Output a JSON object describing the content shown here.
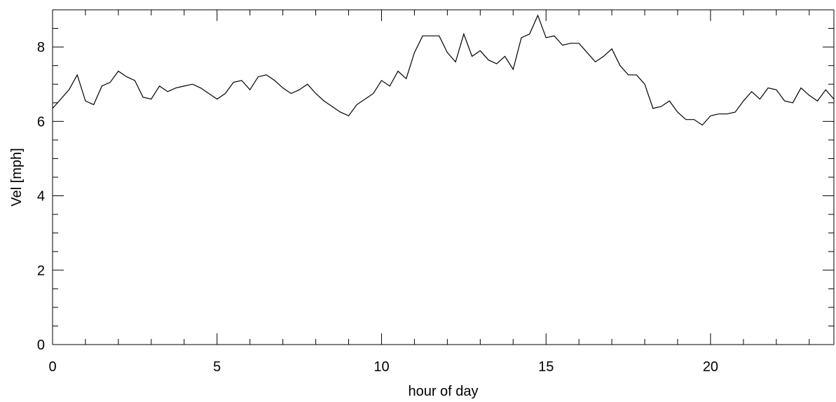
{
  "chart_data": {
    "type": "line",
    "title": "",
    "xlabel": "hour of day",
    "ylabel": "Vel [mph]",
    "xlim": [
      0,
      23.75
    ],
    "ylim": [
      0,
      9
    ],
    "x_major_ticks": [
      0,
      5,
      10,
      15,
      20
    ],
    "x_tick_labels": [
      "0",
      "5",
      "10",
      "15",
      "20"
    ],
    "x_minor_step": 1,
    "y_major_ticks": [
      0,
      2,
      4,
      6,
      8
    ],
    "y_tick_labels": [
      "0",
      "2",
      "4",
      "6",
      "8"
    ],
    "y_minor_step": 0.5,
    "grid": false,
    "legend": "none",
    "colors": {
      "line": "#000000",
      "axes": "#000000"
    },
    "series": [
      {
        "x": [
          0,
          0.25,
          0.5,
          0.75,
          1,
          1.25,
          1.5,
          1.75,
          2,
          2.25,
          2.5,
          2.75,
          3,
          3.25,
          3.5,
          3.75,
          4,
          4.25,
          4.5,
          4.75,
          5,
          5.25,
          5.5,
          5.75,
          6,
          6.25,
          6.5,
          6.75,
          7,
          7.25,
          7.5,
          7.75,
          8,
          8.25,
          8.5,
          8.75,
          9,
          9.25,
          9.5,
          9.75,
          10,
          10.25,
          10.5,
          10.75,
          11,
          11.25,
          11.5,
          11.75,
          12,
          12.25,
          12.5,
          12.75,
          13,
          13.25,
          13.5,
          13.75,
          14,
          14.25,
          14.5,
          14.75,
          15,
          15.25,
          15.5,
          15.75,
          16,
          16.25,
          16.5,
          16.75,
          17,
          17.25,
          17.5,
          17.75,
          18,
          18.25,
          18.5,
          18.75,
          19,
          19.25,
          19.5,
          19.75,
          20,
          20.25,
          20.5,
          20.75,
          21,
          21.25,
          21.5,
          21.75,
          22,
          22.25,
          22.5,
          22.75,
          23,
          23.25,
          23.5,
          23.75
        ],
        "values": [
          6.35,
          6.6,
          6.85,
          7.25,
          6.55,
          6.45,
          6.95,
          7.05,
          7.35,
          7.2,
          7.1,
          6.65,
          6.6,
          6.95,
          6.8,
          6.9,
          6.95,
          7.0,
          6.9,
          6.75,
          6.6,
          6.75,
          7.05,
          7.1,
          6.85,
          7.2,
          7.25,
          7.1,
          6.9,
          6.75,
          6.85,
          7.0,
          6.75,
          6.55,
          6.4,
          6.25,
          6.15,
          6.45,
          6.6,
          6.75,
          7.1,
          6.95,
          7.35,
          7.15,
          7.85,
          8.3,
          8.3,
          8.3,
          7.85,
          7.6,
          8.35,
          7.75,
          7.9,
          7.65,
          7.55,
          7.75,
          7.4,
          8.25,
          8.35,
          8.85,
          8.25,
          8.3,
          8.05,
          8.1,
          8.1,
          7.85,
          7.6,
          7.75,
          7.95,
          7.5,
          7.25,
          7.25,
          7.0,
          6.35,
          6.4,
          6.55,
          6.25,
          6.05,
          6.05,
          5.9,
          6.15,
          6.2,
          6.2,
          6.25,
          6.55,
          6.8,
          6.6,
          6.9,
          6.85,
          6.55,
          6.5,
          6.9,
          6.7,
          6.55,
          6.85,
          6.6
        ]
      }
    ]
  }
}
